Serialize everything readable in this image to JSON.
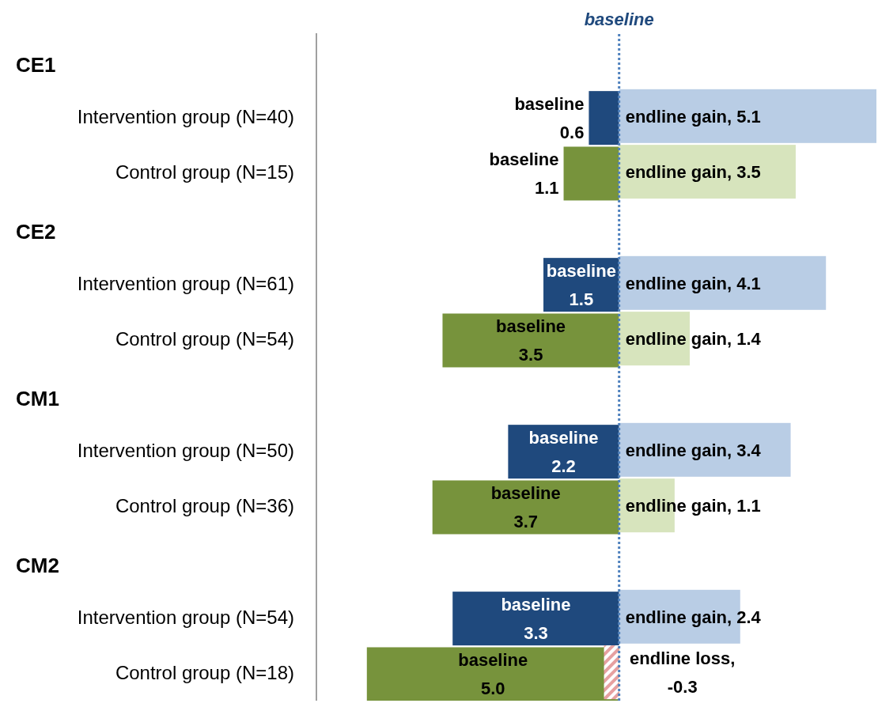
{
  "chart_data": {
    "type": "bar",
    "orientation": "horizontal",
    "categories": [
      null,
      "Intervention group (N=40)",
      "Control group (N=15)",
      null,
      "Intervention group (N=61)",
      "Control group (N=54)",
      null,
      "Intervention group (N=50)",
      "Control group (N=36)",
      null,
      "Intervention group (N=54)",
      "Control group (N=18)"
    ],
    "annotations": [
      "CE1",
      "CE2",
      "CM1",
      "CM2"
    ],
    "series": [
      {
        "values": [
          null,
          -0.6,
          -1.1,
          null,
          -1.5,
          -3.5,
          null,
          -2.2,
          -3.7,
          null,
          -3.3,
          -5.0
        ],
        "colors": [
          null,
          "#1f497d",
          "#77933c",
          null,
          "#1f497d",
          "#77933c",
          null,
          "#1f497d",
          "#77933c",
          null,
          "#1f497d",
          "#77933c"
        ],
        "value_labels": [
          null,
          "baseline\n0.6",
          "baseline\n1.1",
          null,
          "baseline\n1.5",
          "baseline\n3.5",
          null,
          "baseline\n2.2",
          "baseline\n3.7",
          null,
          "baseline\n3.3",
          "baseline\n5.0"
        ]
      },
      {
        "values": [
          null,
          5.1,
          3.5,
          null,
          4.1,
          1.4,
          null,
          3.4,
          1.1,
          null,
          2.4,
          -0.3
        ],
        "colors": [
          null,
          "#b9cde5",
          "#d7e4bd",
          null,
          "#b9cde5",
          "#d7e4bd",
          null,
          "#b9cde5",
          "#d7e4bd",
          null,
          "#b9cde5",
          "#e6a0a0"
        ],
        "value_labels": [
          null,
          "endline gain, 5.1",
          "endline gain, 3.5",
          null,
          "endline gain, 4.1",
          "endline gain, 1.4",
          null,
          "endline gain, 3.4",
          "endline gain, 1.1",
          null,
          "endline gain, 2.4",
          "endline loss,\n-0.3"
        ]
      }
    ],
    "ref_lines": [
      {
        "axis": "x",
        "value": 0,
        "label": "baseline",
        "color": "#4f81bd",
        "line_style": "dotted"
      }
    ],
    "tick_labels": "y"
  }
}
